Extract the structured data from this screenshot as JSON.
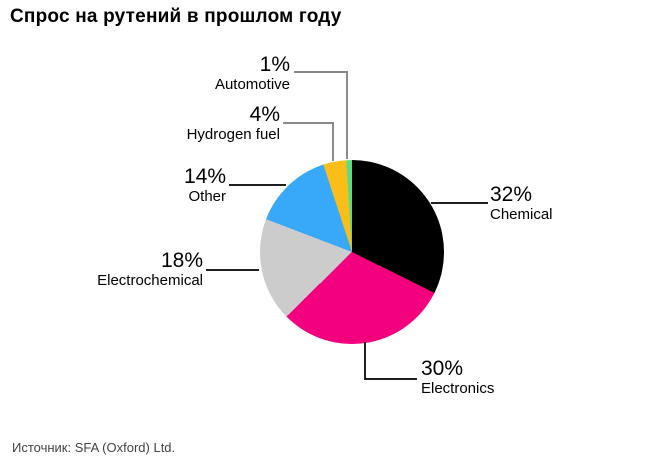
{
  "title": "Спрос на рутений в прошлом году",
  "source": "Источник: SFA (Oxford) Ltd.",
  "chart_data": {
    "type": "pie",
    "title": "Спрос на рутений в прошлом году",
    "start_angle_deg": 0,
    "direction": "clockwise",
    "legend_position": "callout-labels",
    "slices": [
      {
        "label": "Chemical",
        "pct": "32%",
        "value": 32,
        "color": "#000000"
      },
      {
        "label": "Electronics",
        "pct": "30%",
        "value": 30,
        "color": "#F3007E"
      },
      {
        "label": "Electrochemical",
        "pct": "18%",
        "value": 18,
        "color": "#CCCCCC"
      },
      {
        "label": "Other",
        "pct": "14%",
        "value": 14,
        "color": "#38A8F8"
      },
      {
        "label": "Hydrogen fuel",
        "pct": "4%",
        "value": 4,
        "color": "#FBBD17"
      },
      {
        "label": "Automotive",
        "pct": "1%",
        "value": 1,
        "color": "#5EDC85"
      }
    ]
  }
}
